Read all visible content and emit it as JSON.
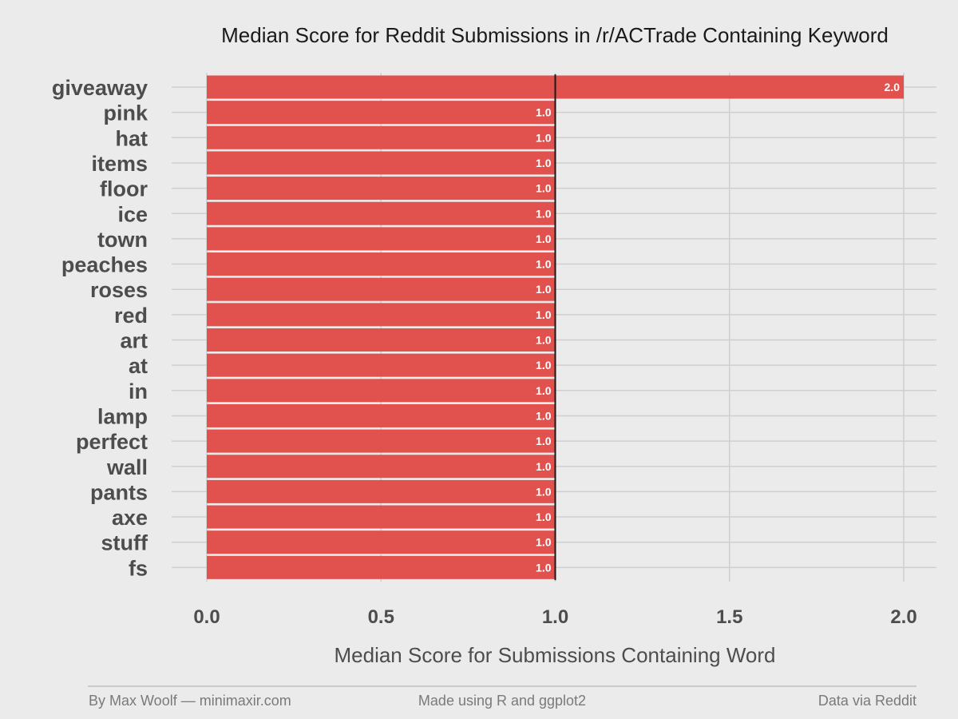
{
  "chart_data": {
    "type": "bar",
    "orientation": "horizontal",
    "title": "Median Score for Reddit Submissions in /r/ACTrade Containing Keyword",
    "xlabel": "Median Score for Submissions Containing Word",
    "ylabel": "",
    "categories": [
      "giveaway",
      "pink",
      "hat",
      "items",
      "floor",
      "ice",
      "town",
      "peaches",
      "roses",
      "red",
      "art",
      "at",
      "in",
      "lamp",
      "perfect",
      "wall",
      "pants",
      "axe",
      "stuff",
      "fs"
    ],
    "values": [
      2.0,
      1.0,
      1.0,
      1.0,
      1.0,
      1.0,
      1.0,
      1.0,
      1.0,
      1.0,
      1.0,
      1.0,
      1.0,
      1.0,
      1.0,
      1.0,
      1.0,
      1.0,
      1.0,
      1.0
    ],
    "value_labels": [
      "2.0",
      "1.0",
      "1.0",
      "1.0",
      "1.0",
      "1.0",
      "1.0",
      "1.0",
      "1.0",
      "1.0",
      "1.0",
      "1.0",
      "1.0",
      "1.0",
      "1.0",
      "1.0",
      "1.0",
      "1.0",
      "1.0",
      "1.0"
    ],
    "xlim": [
      0,
      2
    ],
    "xticks": [
      0,
      0.5,
      1,
      1.5,
      2
    ],
    "xtick_labels": [
      "0.0",
      "0.5",
      "1.0",
      "1.5",
      "2.0"
    ],
    "reference_line": 1.0,
    "bar_color": "#e04a46",
    "grid": true,
    "legend": "none"
  },
  "footer": {
    "left": "By Max Woolf — minimaxir.com",
    "center": "Made using R and ggplot2",
    "right": "Data via Reddit"
  }
}
